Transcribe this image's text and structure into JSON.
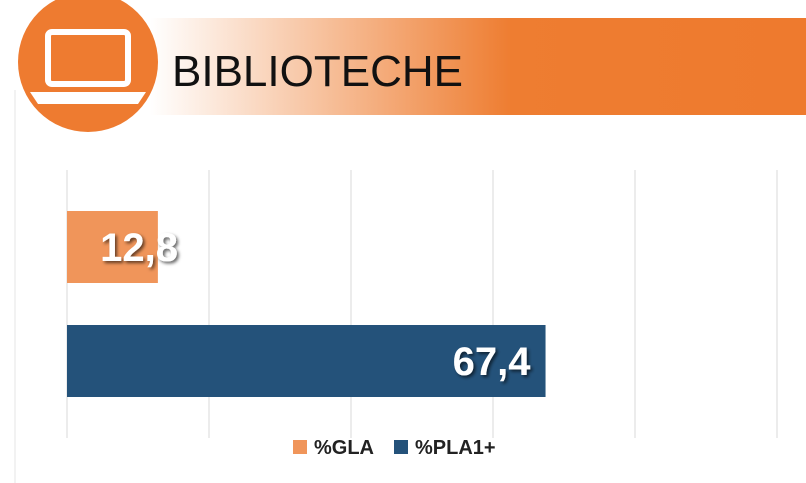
{
  "chart_data": {
    "type": "hbar",
    "title": "BIBLIOTECHE",
    "categories": [
      null
    ],
    "series": [
      {
        "name": "%GLA",
        "color": "#f0955a",
        "values": [
          12.8
        ],
        "value_labels": [
          "12,8"
        ]
      },
      {
        "name": "%PLA1+",
        "color": "#24527a",
        "values": [
          67.4
        ],
        "value_labels": [
          "67,4"
        ]
      }
    ],
    "xlim": [
      0,
      100
    ],
    "xticks": [
      0,
      20,
      40,
      60,
      80,
      100
    ],
    "grid": true,
    "legend": "bottom"
  }
}
